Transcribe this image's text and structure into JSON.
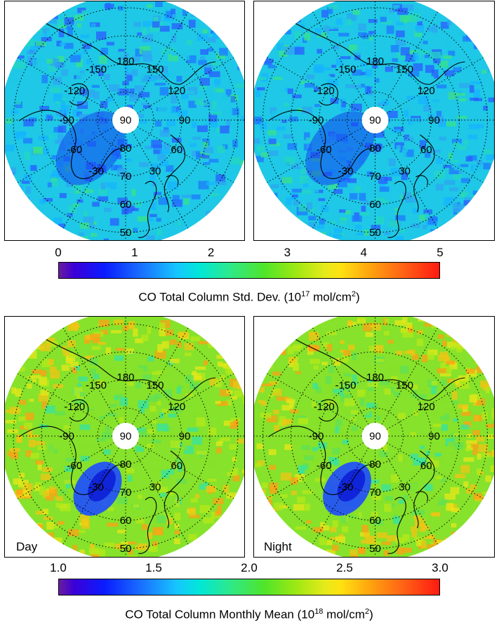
{
  "panels": [
    {
      "id": "std-day",
      "field": "std",
      "variant": "day",
      "label": ""
    },
    {
      "id": "std-night",
      "field": "std",
      "variant": "night",
      "label": ""
    },
    {
      "id": "mean-day",
      "field": "mean",
      "variant": "day",
      "label": "Day"
    },
    {
      "id": "mean-night",
      "field": "mean",
      "variant": "night",
      "label": "Night"
    }
  ],
  "map_labels": {
    "longitudes": [
      "180",
      "-150",
      "150",
      "-120",
      "120",
      "-90",
      "90",
      "-60",
      "60",
      "-30",
      "30"
    ],
    "latitudes": [
      "90",
      "80",
      "70",
      "60",
      "50"
    ]
  },
  "colorbars": {
    "std": {
      "ticks": [
        "0",
        "1",
        "2",
        "3",
        "4",
        "5"
      ],
      "label_main": "CO Total Column Std. Dev. (10",
      "label_exp": "17",
      "label_units": " mol/cm",
      "label_exp2": "2",
      "label_end": ")"
    },
    "mean": {
      "ticks": [
        "1.0",
        "1.5",
        "2.0",
        "2.5",
        "3.0"
      ],
      "label_main": "CO Total Column Monthly Mean (10",
      "label_exp": "18",
      "label_units": " mol/cm",
      "label_exp2": "2",
      "label_end": ")"
    }
  },
  "colors": {
    "std_background": "#1ec8e6",
    "mean_background": "#86e22a",
    "coast": "#000000"
  }
}
